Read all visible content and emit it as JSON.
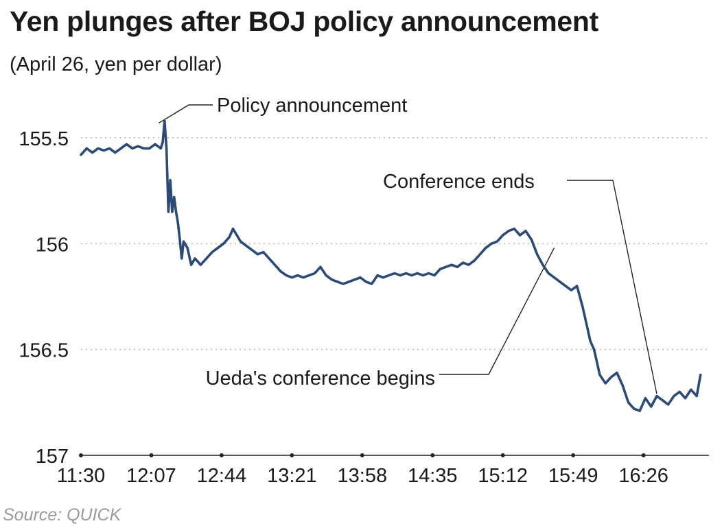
{
  "header": {
    "title": "Yen plunges after BOJ policy announcement",
    "subtitle": "(April 26, yen per dollar)"
  },
  "source": "Source: QUICK",
  "colors": {
    "line": "#2b4a75",
    "grid": "#b8b8b8",
    "axis": "#222222",
    "text": "#1a1a1a"
  },
  "chart_data": {
    "type": "line",
    "title": "Yen plunges after BOJ policy announcement",
    "subtitle": "(April 26, yen per dollar)",
    "xlabel": "",
    "ylabel": "",
    "y_inverted": true,
    "ylim": [
      155.3,
      157
    ],
    "y_ticks": [
      155.5,
      156,
      156.5,
      157
    ],
    "y_tick_labels": [
      "155.5",
      "156",
      "156.5",
      "157"
    ],
    "x_ticks": [
      "11:30",
      "12:07",
      "12:44",
      "13:21",
      "13:58",
      "14:35",
      "15:12",
      "15:49",
      "16:26"
    ],
    "grid": true,
    "series": [
      {
        "values": [
          [
            "11:30",
            155.58
          ],
          [
            "11:33",
            155.55
          ],
          [
            "11:36",
            155.57
          ],
          [
            "11:39",
            155.55
          ],
          [
            "11:42",
            155.56
          ],
          [
            "11:45",
            155.55
          ],
          [
            "11:48",
            155.57
          ],
          [
            "11:51",
            155.55
          ],
          [
            "11:54",
            155.53
          ],
          [
            "11:57",
            155.55
          ],
          [
            "12:00",
            155.54
          ],
          [
            "12:03",
            155.55
          ],
          [
            "12:06",
            155.55
          ],
          [
            "12:09",
            155.53
          ],
          [
            "12:12",
            155.55
          ],
          [
            "12:13",
            155.52
          ],
          [
            "12:14",
            155.42
          ],
          [
            "12:15",
            155.55
          ],
          [
            "12:16",
            155.85
          ],
          [
            "12:17",
            155.7
          ],
          [
            "12:18",
            155.85
          ],
          [
            "12:19",
            155.78
          ],
          [
            "12:20",
            155.85
          ],
          [
            "12:21",
            155.9
          ],
          [
            "12:22",
            155.98
          ],
          [
            "12:23",
            156.07
          ],
          [
            "12:24",
            155.99
          ],
          [
            "12:26",
            156.02
          ],
          [
            "12:28",
            156.1
          ],
          [
            "12:30",
            156.07
          ],
          [
            "12:33",
            156.1
          ],
          [
            "12:36",
            156.07
          ],
          [
            "12:39",
            156.04
          ],
          [
            "12:42",
            156.02
          ],
          [
            "12:45",
            156.0
          ],
          [
            "12:48",
            155.97
          ],
          [
            "12:50",
            155.93
          ],
          [
            "12:52",
            155.96
          ],
          [
            "12:54",
            155.99
          ],
          [
            "12:57",
            156.01
          ],
          [
            "13:00",
            156.03
          ],
          [
            "13:03",
            156.05
          ],
          [
            "13:06",
            156.04
          ],
          [
            "13:09",
            156.07
          ],
          [
            "13:12",
            156.1
          ],
          [
            "13:15",
            156.13
          ],
          [
            "13:18",
            156.15
          ],
          [
            "13:21",
            156.16
          ],
          [
            "13:24",
            156.15
          ],
          [
            "13:27",
            156.16
          ],
          [
            "13:30",
            156.15
          ],
          [
            "13:33",
            156.14
          ],
          [
            "13:36",
            156.11
          ],
          [
            "13:39",
            156.15
          ],
          [
            "13:42",
            156.17
          ],
          [
            "13:45",
            156.18
          ],
          [
            "13:48",
            156.19
          ],
          [
            "13:51",
            156.18
          ],
          [
            "13:54",
            156.17
          ],
          [
            "13:57",
            156.16
          ],
          [
            "14:00",
            156.18
          ],
          [
            "14:03",
            156.19
          ],
          [
            "14:06",
            156.15
          ],
          [
            "14:09",
            156.16
          ],
          [
            "14:12",
            156.15
          ],
          [
            "14:15",
            156.14
          ],
          [
            "14:18",
            156.15
          ],
          [
            "14:21",
            156.14
          ],
          [
            "14:24",
            156.15
          ],
          [
            "14:27",
            156.14
          ],
          [
            "14:30",
            156.15
          ],
          [
            "14:33",
            156.14
          ],
          [
            "14:36",
            156.15
          ],
          [
            "14:39",
            156.12
          ],
          [
            "14:42",
            156.11
          ],
          [
            "14:45",
            156.1
          ],
          [
            "14:48",
            156.11
          ],
          [
            "14:51",
            156.09
          ],
          [
            "14:54",
            156.1
          ],
          [
            "14:57",
            156.08
          ],
          [
            "15:00",
            156.05
          ],
          [
            "15:03",
            156.02
          ],
          [
            "15:06",
            156.0
          ],
          [
            "15:09",
            155.99
          ],
          [
            "15:12",
            155.96
          ],
          [
            "15:15",
            155.94
          ],
          [
            "15:18",
            155.93
          ],
          [
            "15:21",
            155.96
          ],
          [
            "15:24",
            155.94
          ],
          [
            "15:27",
            155.98
          ],
          [
            "15:30",
            156.05
          ],
          [
            "15:33",
            156.1
          ],
          [
            "15:36",
            156.14
          ],
          [
            "15:39",
            156.16
          ],
          [
            "15:42",
            156.18
          ],
          [
            "15:45",
            156.2
          ],
          [
            "15:48",
            156.22
          ],
          [
            "15:51",
            156.2
          ],
          [
            "15:54",
            156.3
          ],
          [
            "15:56",
            156.38
          ],
          [
            "15:58",
            156.46
          ],
          [
            "16:00",
            156.5
          ],
          [
            "16:03",
            156.62
          ],
          [
            "16:06",
            156.66
          ],
          [
            "16:09",
            156.63
          ],
          [
            "16:12",
            156.61
          ],
          [
            "16:15",
            156.67
          ],
          [
            "16:18",
            156.75
          ],
          [
            "16:21",
            156.78
          ],
          [
            "16:24",
            156.79
          ],
          [
            "16:27",
            156.73
          ],
          [
            "16:30",
            156.77
          ],
          [
            "16:33",
            156.72
          ],
          [
            "16:36",
            156.74
          ],
          [
            "16:39",
            156.76
          ],
          [
            "16:42",
            156.72
          ],
          [
            "16:45",
            156.7
          ],
          [
            "16:48",
            156.73
          ],
          [
            "16:51",
            156.69
          ],
          [
            "16:54",
            156.72
          ],
          [
            "16:56",
            156.62
          ]
        ]
      }
    ],
    "annotations": [
      {
        "label": "Policy announcement",
        "time": "12:11",
        "value": 155.43
      },
      {
        "label": "Conference ends",
        "time": "16:33",
        "value": 156.71
      },
      {
        "label": "Ueda's conference begins",
        "time": "15:39",
        "value": 156.02
      }
    ]
  }
}
